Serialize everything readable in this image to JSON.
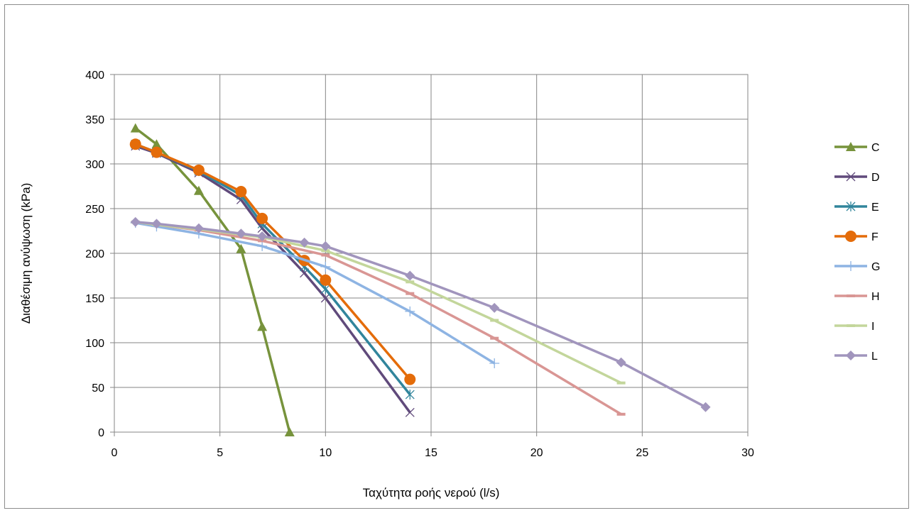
{
  "chart_data": {
    "type": "line",
    "title": "",
    "xlabel": "Ταχύτητα ροής νερού (l/s)",
    "ylabel": "Διαθέσιμη ανύψωση (kPa)",
    "xlim": [
      0,
      30
    ],
    "ylim": [
      0,
      400
    ],
    "xticks": [
      "0",
      "5",
      "10",
      "15",
      "20",
      "25",
      "30"
    ],
    "yticks": [
      "0",
      "50",
      "100",
      "150",
      "200",
      "250",
      "300",
      "350",
      "400"
    ],
    "grid": true,
    "legend_position": "right",
    "series": [
      {
        "name": "C",
        "color": "#77933c",
        "marker": "triangle",
        "x": [
          1,
          2,
          4,
          6,
          7,
          8.3
        ],
        "y": [
          340,
          322,
          270,
          205,
          118,
          0
        ]
      },
      {
        "name": "D",
        "color": "#604a7b",
        "marker": "x",
        "x": [
          1,
          2,
          4,
          6,
          7,
          9,
          10,
          14
        ],
        "y": [
          320,
          312,
          290,
          260,
          228,
          178,
          150,
          22
        ]
      },
      {
        "name": "E",
        "color": "#31859c",
        "marker": "asterisk",
        "x": [
          1,
          2,
          4,
          6,
          7,
          9,
          10,
          14
        ],
        "y": [
          322,
          313,
          292,
          265,
          233,
          185,
          160,
          42
        ]
      },
      {
        "name": "F",
        "color": "#e46c0a",
        "marker": "circle",
        "x": [
          1,
          2,
          4,
          6,
          7,
          9,
          10,
          14
        ],
        "y": [
          322,
          313,
          293,
          269,
          239,
          192,
          170,
          59
        ]
      },
      {
        "name": "G",
        "color": "#8eb4e3",
        "marker": "plus",
        "x": [
          1,
          2,
          4,
          7,
          10,
          14,
          18
        ],
        "y": [
          234,
          230,
          222,
          208,
          185,
          135,
          77
        ]
      },
      {
        "name": "H",
        "color": "#d99694",
        "marker": "dash",
        "x": [
          1,
          2,
          4,
          7,
          10,
          14,
          18,
          24
        ],
        "y": [
          235,
          232,
          226,
          214,
          198,
          155,
          105,
          20
        ]
      },
      {
        "name": "I",
        "color": "#c3d69b",
        "marker": "dash",
        "x": [
          1,
          2,
          4,
          7,
          10,
          14,
          18,
          24
        ],
        "y": [
          235,
          232,
          227,
          218,
          203,
          168,
          125,
          55
        ]
      },
      {
        "name": "L",
        "color": "#a195bd",
        "marker": "diamond",
        "x": [
          1,
          2,
          4,
          6,
          7,
          9,
          10,
          14,
          18,
          24,
          28
        ],
        "y": [
          235,
          233,
          228,
          222,
          219,
          212,
          208,
          175,
          139,
          78,
          28
        ]
      }
    ]
  }
}
